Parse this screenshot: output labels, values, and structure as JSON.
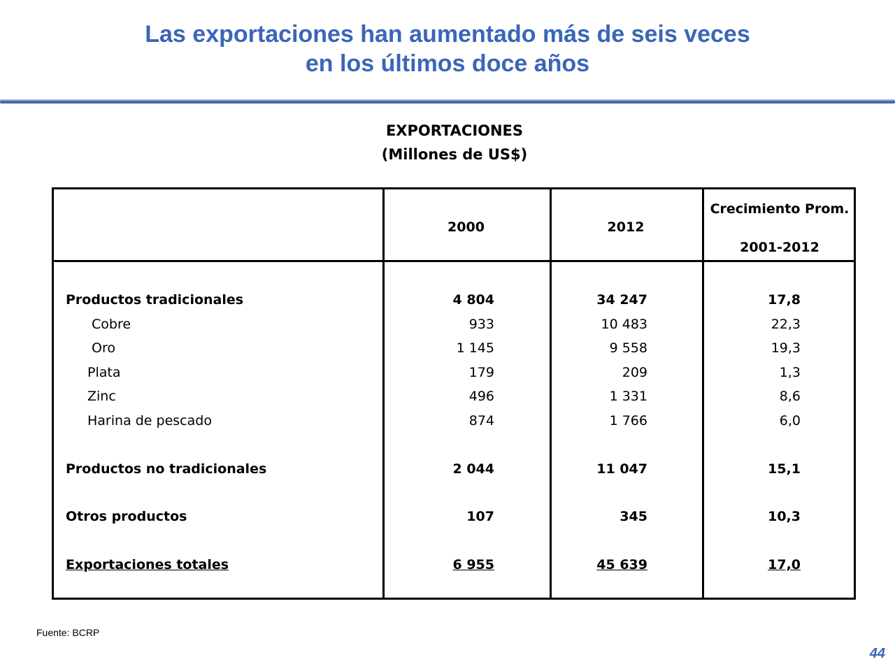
{
  "slide": {
    "title_line1": "Las exportaciones han aumentado más de seis veces",
    "title_line2": "en los últimos doce años",
    "source": "Fuente:  BCRP",
    "page_number": "44"
  },
  "table": {
    "heading_line1": "EXPORTACIONES",
    "heading_line2": "(Millones de US$)",
    "columns": {
      "year1": "2000",
      "year2": "2012",
      "growth_line1": "Crecimiento Prom.",
      "growth_line2": "2001-2012"
    },
    "rows": [
      {
        "label": "Productos tradicionales",
        "v2000": "4 804",
        "v2012": "34 247",
        "growth": "17,8"
      },
      {
        "label": "Cobre",
        "v2000": "933",
        "v2012": "10 483",
        "growth": "22,3"
      },
      {
        "label": "Oro",
        "v2000": "1 145",
        "v2012": "9 558",
        "growth": "19,3"
      },
      {
        "label": "Plata",
        "v2000": "179",
        "v2012": "209",
        "growth": "1,3"
      },
      {
        "label": "Zinc",
        "v2000": "496",
        "v2012": "1 331",
        "growth": "8,6"
      },
      {
        "label": "Harina de pescado",
        "v2000": "874",
        "v2012": "1 766",
        "growth": "6,0"
      },
      {
        "label": "Productos no tradicionales",
        "v2000": "2 044",
        "v2012": "11 047",
        "growth": "15,1"
      },
      {
        "label": "Otros productos",
        "v2000": "107",
        "v2012": "345",
        "growth": "10,3"
      },
      {
        "label": "Exportaciones totales",
        "v2000": "6 955",
        "v2012": "45 639",
        "growth": "17,0"
      }
    ]
  }
}
